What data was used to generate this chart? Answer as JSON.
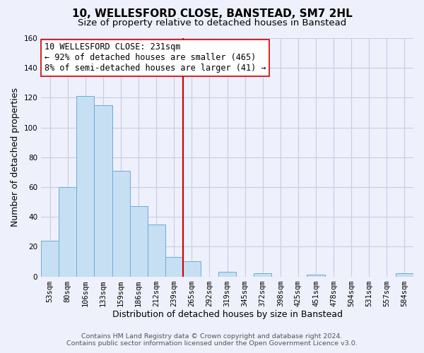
{
  "title": "10, WELLESFORD CLOSE, BANSTEAD, SM7 2HL",
  "subtitle": "Size of property relative to detached houses in Banstead",
  "xlabel": "Distribution of detached houses by size in Banstead",
  "ylabel": "Number of detached properties",
  "bin_labels": [
    "53sqm",
    "80sqm",
    "106sqm",
    "133sqm",
    "159sqm",
    "186sqm",
    "212sqm",
    "239sqm",
    "265sqm",
    "292sqm",
    "319sqm",
    "345sqm",
    "372sqm",
    "398sqm",
    "425sqm",
    "451sqm",
    "478sqm",
    "504sqm",
    "531sqm",
    "557sqm",
    "584sqm"
  ],
  "bar_heights": [
    24,
    60,
    121,
    115,
    71,
    47,
    35,
    13,
    10,
    0,
    3,
    0,
    2,
    0,
    0,
    1,
    0,
    0,
    0,
    0,
    2
  ],
  "bar_color": "#c6dff2",
  "bar_edge_color": "#6aaed6",
  "vline_x_index": 7,
  "vline_color": "#cc0000",
  "ylim": [
    0,
    160
  ],
  "yticks": [
    0,
    20,
    40,
    60,
    80,
    100,
    120,
    140,
    160
  ],
  "annotation_text_line1": "10 WELLESFORD CLOSE: 231sqm",
  "annotation_text_line2": "← 92% of detached houses are smaller (465)",
  "annotation_text_line3": "8% of semi-detached houses are larger (41) →",
  "footer_line1": "Contains HM Land Registry data © Crown copyright and database right 2024.",
  "footer_line2": "Contains public sector information licensed under the Open Government Licence v3.0.",
  "bg_color": "#eef0fb",
  "plot_bg_color": "#eef0fb",
  "grid_color": "#c8cce8",
  "title_fontsize": 11,
  "subtitle_fontsize": 9.5,
  "label_fontsize": 9,
  "tick_fontsize": 7.5,
  "footer_fontsize": 6.8,
  "ann_fontsize": 8.5
}
